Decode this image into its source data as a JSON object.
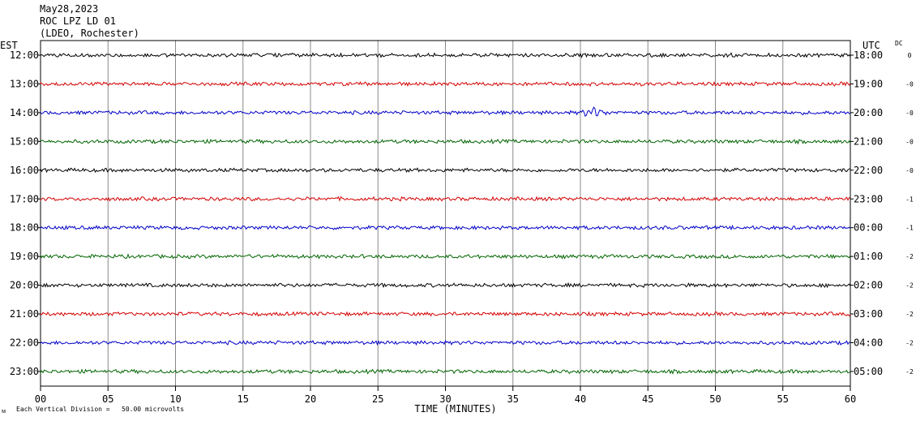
{
  "header": {
    "date": "May28,2023",
    "station": "ROC LPZ LD 01",
    "network": "(LDEO, Rochester)"
  },
  "left_tz": "EST",
  "right_tz": "UTC",
  "dc_header": "DC",
  "footer_note": "Each Vertical Division =   50.00 microvolts",
  "corner_mark": "ᴍ",
  "colors": [
    "#000000",
    "#d40000",
    "#0000c8",
    "#006400"
  ],
  "chart_data": {
    "type": "line",
    "xlabel": "TIME (MINUTES)",
    "xlim": [
      0,
      60
    ],
    "x_ticks": [
      "00",
      "05",
      "10",
      "15",
      "20",
      "25",
      "30",
      "35",
      "40",
      "45",
      "50",
      "55",
      "60"
    ],
    "rows": [
      {
        "left": "12:00",
        "right": "18:00",
        "dc": "0"
      },
      {
        "left": "13:00",
        "right": "19:00",
        "dc": "-0"
      },
      {
        "left": "14:00",
        "right": "20:00",
        "dc": "-0"
      },
      {
        "left": "15:00",
        "right": "21:00",
        "dc": "-0"
      },
      {
        "left": "16:00",
        "right": "22:00",
        "dc": "-0"
      },
      {
        "left": "17:00",
        "right": "23:00",
        "dc": "-1"
      },
      {
        "left": "18:00",
        "right": "00:00",
        "dc": "-1"
      },
      {
        "left": "19:00",
        "right": "01:00",
        "dc": "-2"
      },
      {
        "left": "20:00",
        "right": "02:00",
        "dc": "-2"
      },
      {
        "left": "21:00",
        "right": "03:00",
        "dc": "-2"
      },
      {
        "left": "22:00",
        "right": "04:00",
        "dc": "-2"
      },
      {
        "left": "23:00",
        "right": "05:00",
        "dc": "-2"
      }
    ],
    "events": [
      {
        "row": 2,
        "minute": 41
      }
    ]
  }
}
